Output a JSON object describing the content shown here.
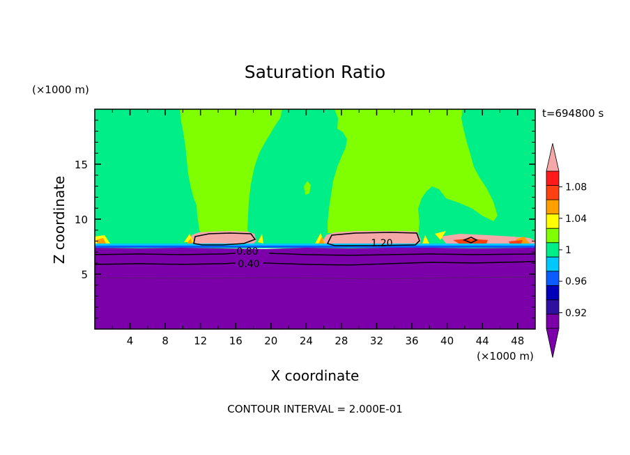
{
  "chart_data": {
    "type": "heatmap",
    "title": "Saturation Ratio",
    "xlabel": "X coordinate",
    "ylabel": "Z coordinate",
    "x_unit": "(×1000 m)",
    "y_unit": "(×1000 m)",
    "time_label": "t=694800 s",
    "footer": "CONTOUR INTERVAL = 2.000E-01",
    "xlim": [
      0,
      50
    ],
    "ylim": [
      0,
      20
    ],
    "x_ticks": [
      4,
      8,
      12,
      16,
      20,
      24,
      28,
      32,
      36,
      40,
      44,
      48
    ],
    "y_ticks": [
      5,
      10,
      15
    ],
    "colorbar": {
      "levels": [
        0.9,
        0.92,
        0.94,
        0.96,
        0.98,
        1.0,
        1.02,
        1.04,
        1.06,
        1.08,
        1.1
      ],
      "labels": [
        "0.92",
        "0.96",
        "1",
        "1.04",
        "1.08"
      ],
      "label_values": [
        0.92,
        0.96,
        1.0,
        1.04,
        1.08
      ],
      "colors": [
        "#7b00aa",
        "#2e0fa0",
        "#0000ba",
        "#0a5cff",
        "#00c8ff",
        "#00ee88",
        "#80ff00",
        "#ffff00",
        "#ff9f00",
        "#ff4010",
        "#ff1a1a"
      ],
      "over_color": "#f4a8a8",
      "under_color": "#7b00aa"
    },
    "contours": [
      {
        "label": "0.40",
        "value": 0.4,
        "label_x": 17.5,
        "label_z": 5.9
      },
      {
        "label": "0.80",
        "value": 0.8,
        "label_x": 17.2,
        "label_z": 7.2
      },
      {
        "label": "1.20",
        "value": 1.2,
        "label_x": 31.5,
        "label_z": 7.9
      }
    ]
  }
}
